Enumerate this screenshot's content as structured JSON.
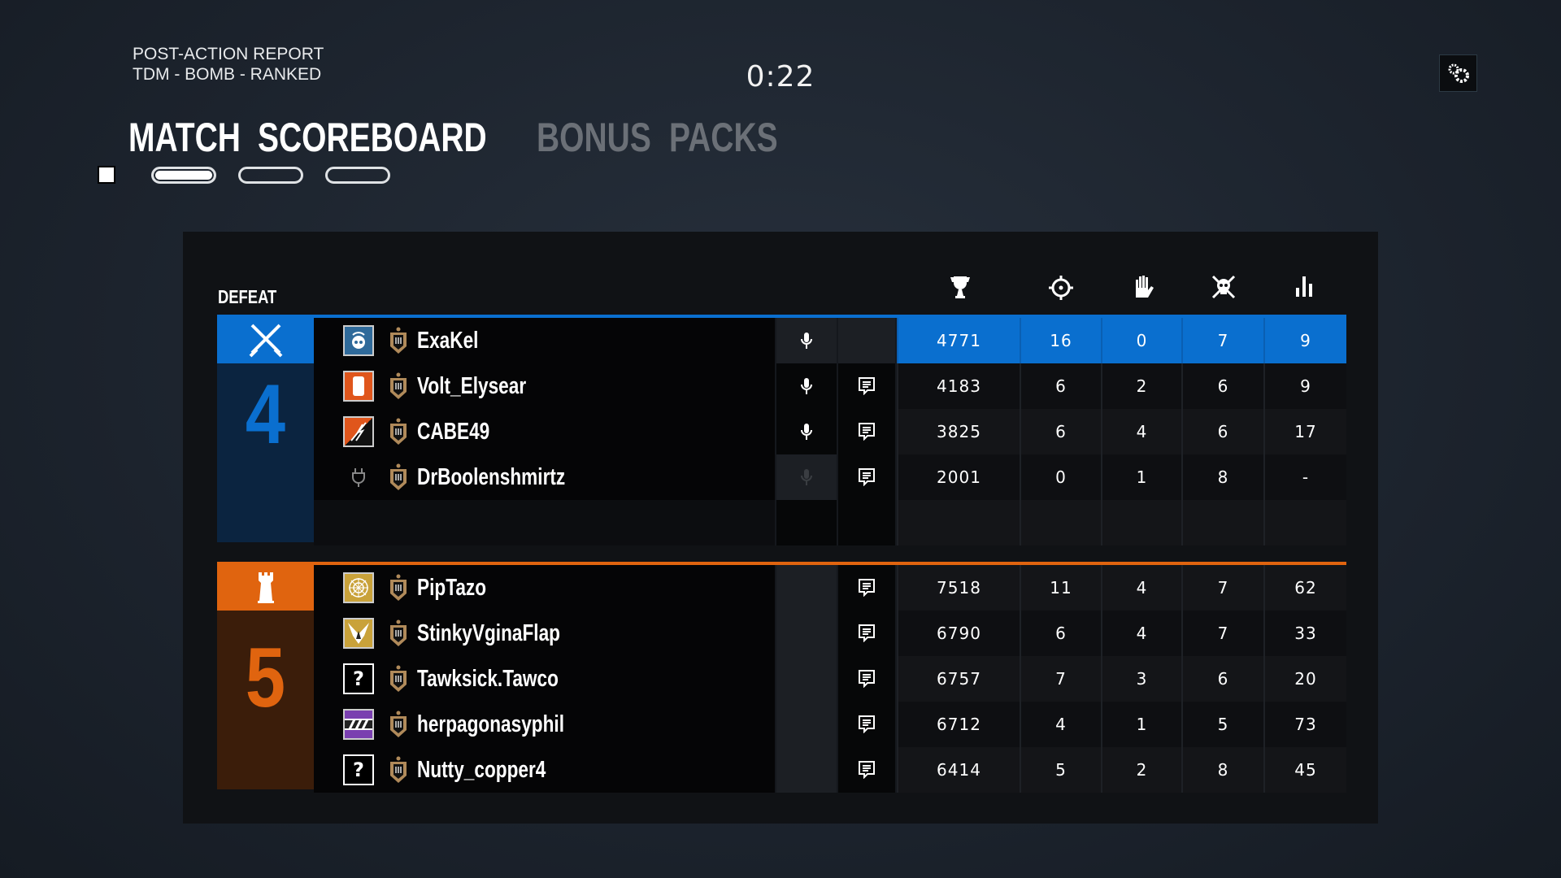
{
  "header": {
    "title": "POST-ACTION REPORT",
    "mode": "TDM - BOMB - RANKED",
    "timer": "0:22"
  },
  "tabs": [
    {
      "label": "MATCH",
      "active": true
    },
    {
      "label": "SCOREBOARD",
      "active": true
    },
    {
      "label": "BONUS",
      "active": false
    },
    {
      "label": "PACKS",
      "active": false
    }
  ],
  "colors": {
    "blue": "#0a6fcf",
    "orange": "#e0640f",
    "blue_dark": "#0b2440",
    "orange_dark": "#3b1d0a"
  },
  "scoreboard": {
    "result": "DEFEAT",
    "columns": [
      "trophy-icon",
      "crosshair-icon",
      "hand-icon",
      "skull-icon",
      "bar-chart-icon"
    ],
    "teams": [
      {
        "score": "4",
        "color": "blue",
        "badge": "crossed-swords-icon",
        "players": [
          {
            "name": "ExaKel",
            "op": "skull-drone",
            "mic": true,
            "chat": false,
            "self": true,
            "stats": [
              "4771",
              "16",
              "0",
              "7",
              "9"
            ]
          },
          {
            "name": "Volt_Elysear",
            "op": "orange-shield",
            "mic": true,
            "chat": true,
            "stats": [
              "4183",
              "6",
              "2",
              "6",
              "9"
            ]
          },
          {
            "name": "CABE49",
            "op": "orange-lightning",
            "mic": true,
            "chat": true,
            "stats": [
              "3825",
              "6",
              "4",
              "6",
              "17"
            ]
          },
          {
            "name": "DrBoolenshmirtz",
            "op": "disconnected",
            "mic": false,
            "chat": true,
            "stats": [
              "2001",
              "0",
              "1",
              "8",
              "-"
            ]
          }
        ]
      },
      {
        "score": "5",
        "color": "orange",
        "badge": "tower-icon",
        "players": [
          {
            "name": "PipTazo",
            "op": "gold-web",
            "mic": false,
            "chat": true,
            "stats": [
              "7518",
              "11",
              "4",
              "7",
              "62"
            ]
          },
          {
            "name": "StinkyVginaFlap",
            "op": "gold-bird",
            "mic": false,
            "chat": true,
            "stats": [
              "6790",
              "6",
              "4",
              "7",
              "33"
            ]
          },
          {
            "name": "Tawksick.Tawco",
            "op": "?",
            "mic": false,
            "chat": true,
            "stats": [
              "6757",
              "7",
              "3",
              "6",
              "20"
            ]
          },
          {
            "name": "herpagonasyphil",
            "op": "purple-stripes",
            "mic": false,
            "chat": true,
            "stats": [
              "6712",
              "4",
              "1",
              "5",
              "73"
            ]
          },
          {
            "name": "Nutty_copper4",
            "op": "?",
            "mic": false,
            "chat": true,
            "stats": [
              "6414",
              "5",
              "2",
              "8",
              "45"
            ]
          }
        ]
      }
    ]
  }
}
